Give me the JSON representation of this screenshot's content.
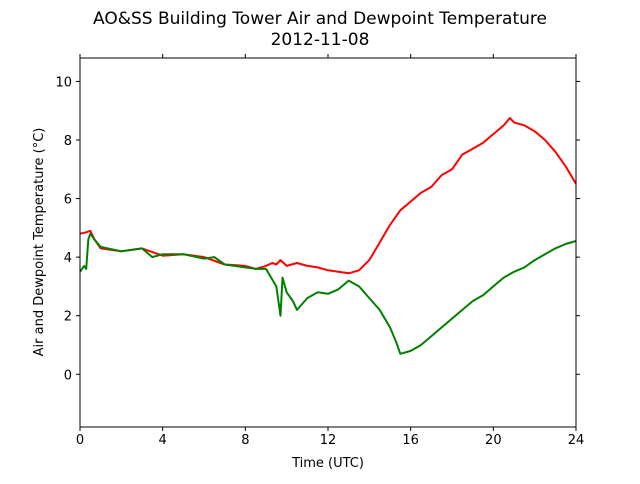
{
  "chart_data": {
    "type": "line",
    "title": "AO&SS Building Tower Air and Dewpoint Temperature",
    "subtitle": "2012-11-08",
    "xlabel": "Time (UTC)",
    "ylabel": "Air and Dewpoint Temperature (°C)",
    "xlim": [
      0,
      24
    ],
    "ylim": [
      -1.8,
      10.8
    ],
    "xticks": [
      0,
      4,
      8,
      12,
      16,
      20,
      24
    ],
    "yticks": [
      0,
      2,
      4,
      6,
      8,
      10
    ],
    "grid": false,
    "legend": "none",
    "series": [
      {
        "color": "#ff0000",
        "x": [
          0,
          0.3,
          0.5,
          0.7,
          1,
          2,
          3,
          4,
          5,
          6,
          7,
          8,
          8.5,
          9,
          9.3,
          9.5,
          9.7,
          10,
          10.5,
          11,
          11.5,
          12,
          12.5,
          13,
          13.5,
          14,
          14.5,
          15,
          15.5,
          16,
          16.5,
          17,
          17.5,
          18,
          18.5,
          19,
          19.5,
          20,
          20.5,
          20.8,
          21,
          21.5,
          22,
          22.5,
          23,
          23.5,
          24
        ],
        "y": [
          4.8,
          4.85,
          4.9,
          4.6,
          4.3,
          4.2,
          4.3,
          4.05,
          4.1,
          4.0,
          3.75,
          3.7,
          3.6,
          3.7,
          3.8,
          3.75,
          3.9,
          3.7,
          3.8,
          3.7,
          3.65,
          3.55,
          3.5,
          3.45,
          3.55,
          3.9,
          4.5,
          5.1,
          5.6,
          5.9,
          6.2,
          6.4,
          6.8,
          7.0,
          7.5,
          7.7,
          7.9,
          8.2,
          8.5,
          8.75,
          8.6,
          8.5,
          8.3,
          8.0,
          7.6,
          7.1,
          6.5
        ]
      },
      {
        "color": "#008000",
        "x": [
          0,
          0.2,
          0.3,
          0.4,
          0.5,
          0.7,
          1,
          2,
          3,
          3.5,
          4,
          5,
          6,
          6.5,
          7,
          8,
          8.5,
          9,
          9.5,
          9.7,
          9.8,
          10,
          10.3,
          10.5,
          11,
          11.5,
          12,
          12.5,
          13,
          13.5,
          14,
          14.5,
          15,
          15.3,
          15.5,
          16,
          16.5,
          17,
          17.5,
          18,
          18.5,
          19,
          19.5,
          20,
          20.5,
          21,
          21.5,
          22,
          22.5,
          23,
          23.5,
          24
        ],
        "y": [
          3.5,
          3.7,
          3.6,
          4.6,
          4.8,
          4.6,
          4.35,
          4.2,
          4.3,
          4.0,
          4.1,
          4.1,
          3.95,
          4.0,
          3.75,
          3.65,
          3.6,
          3.6,
          3.0,
          2.0,
          3.3,
          2.8,
          2.5,
          2.2,
          2.6,
          2.8,
          2.75,
          2.9,
          3.2,
          3.0,
          2.6,
          2.2,
          1.6,
          1.1,
          0.7,
          0.8,
          1.0,
          1.3,
          1.6,
          1.9,
          2.2,
          2.5,
          2.7,
          3.0,
          3.3,
          3.5,
          3.65,
          3.9,
          4.1,
          4.3,
          4.45,
          4.55
        ]
      }
    ]
  }
}
